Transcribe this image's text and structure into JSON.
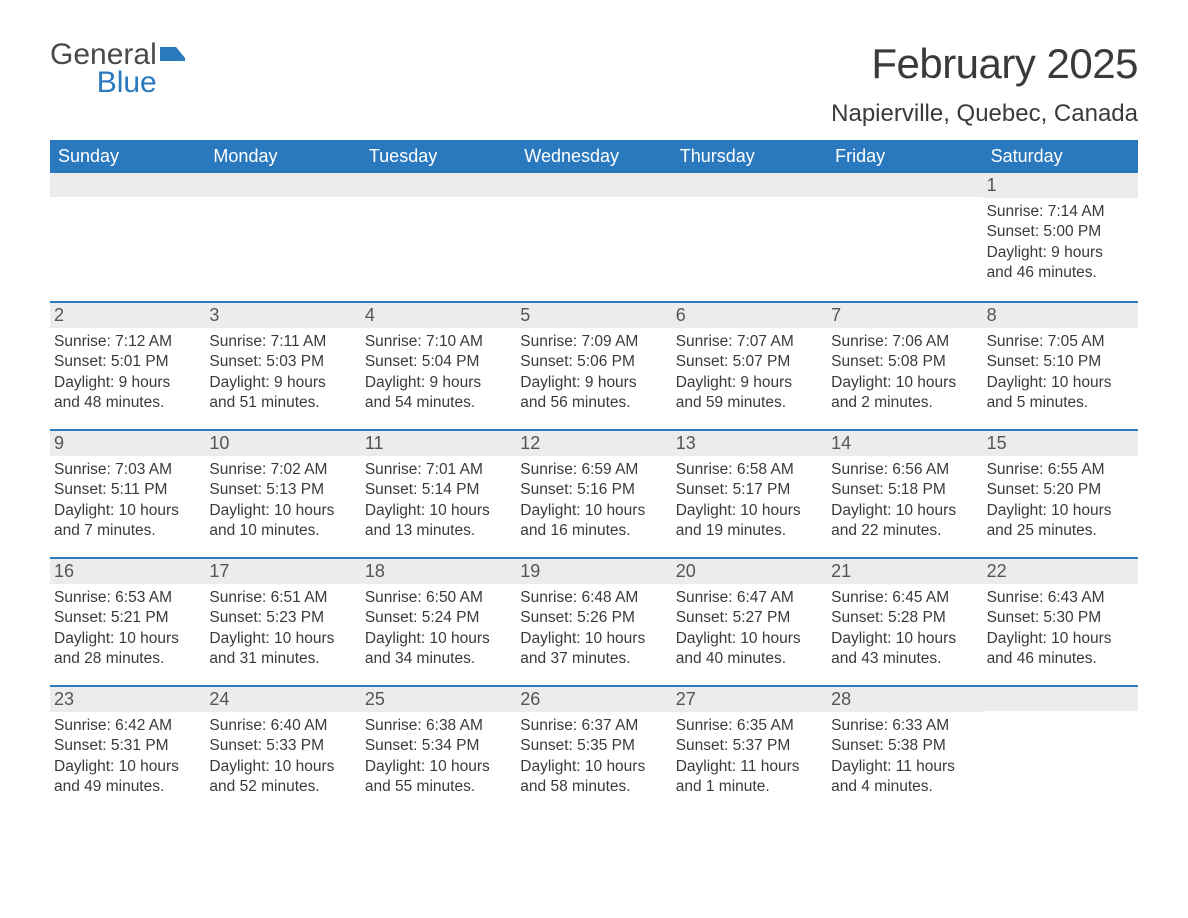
{
  "logo": {
    "word1": "General",
    "word2": "Blue",
    "brand_color": "#2a78bd"
  },
  "title": "February 2025",
  "location": "Napierville, Quebec, Canada",
  "header_bg": "#2a78bd",
  "daynum_bg": "#ececec",
  "border_color": "#2a78bd",
  "weekdays": [
    "Sunday",
    "Monday",
    "Tuesday",
    "Wednesday",
    "Thursday",
    "Friday",
    "Saturday"
  ],
  "weeks": [
    [
      null,
      null,
      null,
      null,
      null,
      null,
      {
        "n": "1",
        "sunrise": "Sunrise: 7:14 AM",
        "sunset": "Sunset: 5:00 PM",
        "day1": "Daylight: 9 hours",
        "day2": "and 46 minutes."
      }
    ],
    [
      {
        "n": "2",
        "sunrise": "Sunrise: 7:12 AM",
        "sunset": "Sunset: 5:01 PM",
        "day1": "Daylight: 9 hours",
        "day2": "and 48 minutes."
      },
      {
        "n": "3",
        "sunrise": "Sunrise: 7:11 AM",
        "sunset": "Sunset: 5:03 PM",
        "day1": "Daylight: 9 hours",
        "day2": "and 51 minutes."
      },
      {
        "n": "4",
        "sunrise": "Sunrise: 7:10 AM",
        "sunset": "Sunset: 5:04 PM",
        "day1": "Daylight: 9 hours",
        "day2": "and 54 minutes."
      },
      {
        "n": "5",
        "sunrise": "Sunrise: 7:09 AM",
        "sunset": "Sunset: 5:06 PM",
        "day1": "Daylight: 9 hours",
        "day2": "and 56 minutes."
      },
      {
        "n": "6",
        "sunrise": "Sunrise: 7:07 AM",
        "sunset": "Sunset: 5:07 PM",
        "day1": "Daylight: 9 hours",
        "day2": "and 59 minutes."
      },
      {
        "n": "7",
        "sunrise": "Sunrise: 7:06 AM",
        "sunset": "Sunset: 5:08 PM",
        "day1": "Daylight: 10 hours",
        "day2": "and 2 minutes."
      },
      {
        "n": "8",
        "sunrise": "Sunrise: 7:05 AM",
        "sunset": "Sunset: 5:10 PM",
        "day1": "Daylight: 10 hours",
        "day2": "and 5 minutes."
      }
    ],
    [
      {
        "n": "9",
        "sunrise": "Sunrise: 7:03 AM",
        "sunset": "Sunset: 5:11 PM",
        "day1": "Daylight: 10 hours",
        "day2": "and 7 minutes."
      },
      {
        "n": "10",
        "sunrise": "Sunrise: 7:02 AM",
        "sunset": "Sunset: 5:13 PM",
        "day1": "Daylight: 10 hours",
        "day2": "and 10 minutes."
      },
      {
        "n": "11",
        "sunrise": "Sunrise: 7:01 AM",
        "sunset": "Sunset: 5:14 PM",
        "day1": "Daylight: 10 hours",
        "day2": "and 13 minutes."
      },
      {
        "n": "12",
        "sunrise": "Sunrise: 6:59 AM",
        "sunset": "Sunset: 5:16 PM",
        "day1": "Daylight: 10 hours",
        "day2": "and 16 minutes."
      },
      {
        "n": "13",
        "sunrise": "Sunrise: 6:58 AM",
        "sunset": "Sunset: 5:17 PM",
        "day1": "Daylight: 10 hours",
        "day2": "and 19 minutes."
      },
      {
        "n": "14",
        "sunrise": "Sunrise: 6:56 AM",
        "sunset": "Sunset: 5:18 PM",
        "day1": "Daylight: 10 hours",
        "day2": "and 22 minutes."
      },
      {
        "n": "15",
        "sunrise": "Sunrise: 6:55 AM",
        "sunset": "Sunset: 5:20 PM",
        "day1": "Daylight: 10 hours",
        "day2": "and 25 minutes."
      }
    ],
    [
      {
        "n": "16",
        "sunrise": "Sunrise: 6:53 AM",
        "sunset": "Sunset: 5:21 PM",
        "day1": "Daylight: 10 hours",
        "day2": "and 28 minutes."
      },
      {
        "n": "17",
        "sunrise": "Sunrise: 6:51 AM",
        "sunset": "Sunset: 5:23 PM",
        "day1": "Daylight: 10 hours",
        "day2": "and 31 minutes."
      },
      {
        "n": "18",
        "sunrise": "Sunrise: 6:50 AM",
        "sunset": "Sunset: 5:24 PM",
        "day1": "Daylight: 10 hours",
        "day2": "and 34 minutes."
      },
      {
        "n": "19",
        "sunrise": "Sunrise: 6:48 AM",
        "sunset": "Sunset: 5:26 PM",
        "day1": "Daylight: 10 hours",
        "day2": "and 37 minutes."
      },
      {
        "n": "20",
        "sunrise": "Sunrise: 6:47 AM",
        "sunset": "Sunset: 5:27 PM",
        "day1": "Daylight: 10 hours",
        "day2": "and 40 minutes."
      },
      {
        "n": "21",
        "sunrise": "Sunrise: 6:45 AM",
        "sunset": "Sunset: 5:28 PM",
        "day1": "Daylight: 10 hours",
        "day2": "and 43 minutes."
      },
      {
        "n": "22",
        "sunrise": "Sunrise: 6:43 AM",
        "sunset": "Sunset: 5:30 PM",
        "day1": "Daylight: 10 hours",
        "day2": "and 46 minutes."
      }
    ],
    [
      {
        "n": "23",
        "sunrise": "Sunrise: 6:42 AM",
        "sunset": "Sunset: 5:31 PM",
        "day1": "Daylight: 10 hours",
        "day2": "and 49 minutes."
      },
      {
        "n": "24",
        "sunrise": "Sunrise: 6:40 AM",
        "sunset": "Sunset: 5:33 PM",
        "day1": "Daylight: 10 hours",
        "day2": "and 52 minutes."
      },
      {
        "n": "25",
        "sunrise": "Sunrise: 6:38 AM",
        "sunset": "Sunset: 5:34 PM",
        "day1": "Daylight: 10 hours",
        "day2": "and 55 minutes."
      },
      {
        "n": "26",
        "sunrise": "Sunrise: 6:37 AM",
        "sunset": "Sunset: 5:35 PM",
        "day1": "Daylight: 10 hours",
        "day2": "and 58 minutes."
      },
      {
        "n": "27",
        "sunrise": "Sunrise: 6:35 AM",
        "sunset": "Sunset: 5:37 PM",
        "day1": "Daylight: 11 hours",
        "day2": "and 1 minute."
      },
      {
        "n": "28",
        "sunrise": "Sunrise: 6:33 AM",
        "sunset": "Sunset: 5:38 PM",
        "day1": "Daylight: 11 hours",
        "day2": "and 4 minutes."
      },
      null
    ]
  ]
}
